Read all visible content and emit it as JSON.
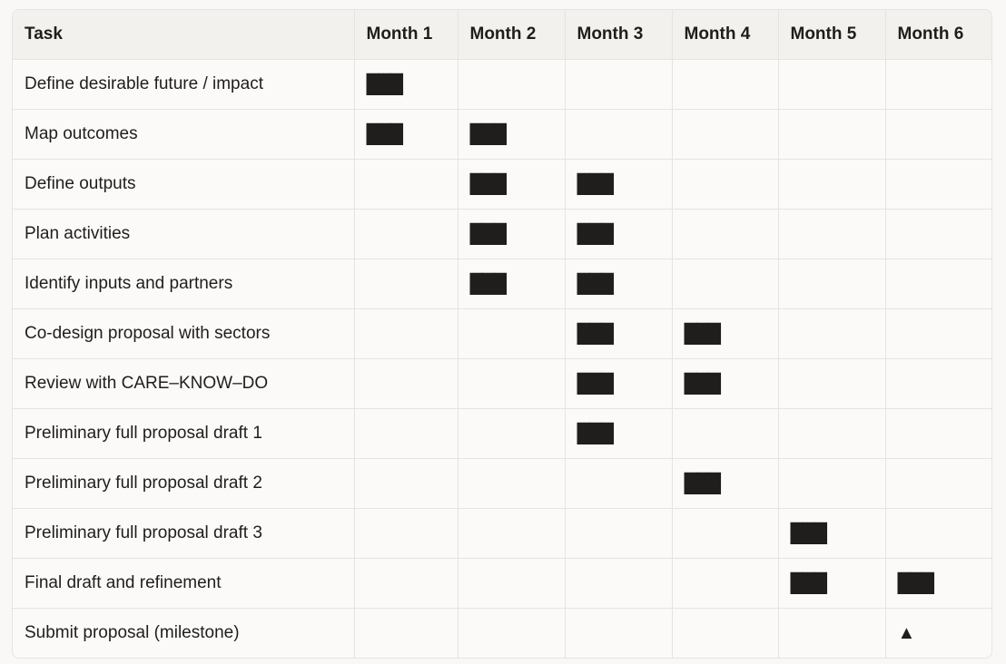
{
  "table": {
    "header": [
      "Task",
      "Month 1",
      "Month 2",
      "Month 3",
      "Month 4",
      "Month 5",
      "Month 6"
    ],
    "rows": [
      [
        "Define desirable future / impact",
        "███",
        null,
        null,
        null,
        null,
        null
      ],
      [
        "Map outcomes",
        "███",
        "███",
        null,
        null,
        null,
        null
      ],
      [
        "Define outputs",
        null,
        "███",
        "███",
        null,
        null,
        null
      ],
      [
        "Plan activities",
        null,
        "███",
        "███",
        null,
        null,
        null
      ],
      [
        "Identify inputs and partners",
        null,
        "███",
        "███",
        null,
        null,
        null
      ],
      [
        "Co-design proposal with sectors",
        null,
        null,
        "███",
        "███",
        null,
        null
      ],
      [
        "Review with CARE–KNOW–DO",
        null,
        null,
        "███",
        "███",
        null,
        null
      ],
      [
        "Preliminary full proposal draft 1",
        null,
        null,
        "███",
        null,
        null,
        null
      ],
      [
        "Preliminary full proposal draft 2",
        null,
        null,
        null,
        "███",
        null,
        null
      ],
      [
        "Preliminary full proposal draft 3",
        null,
        null,
        null,
        null,
        "███",
        null
      ],
      [
        "Final draft and refinement",
        null,
        null,
        null,
        null,
        "███",
        "███"
      ],
      [
        "Submit proposal (milestone)",
        null,
        null,
        null,
        null,
        null,
        "▲"
      ]
    ]
  }
}
